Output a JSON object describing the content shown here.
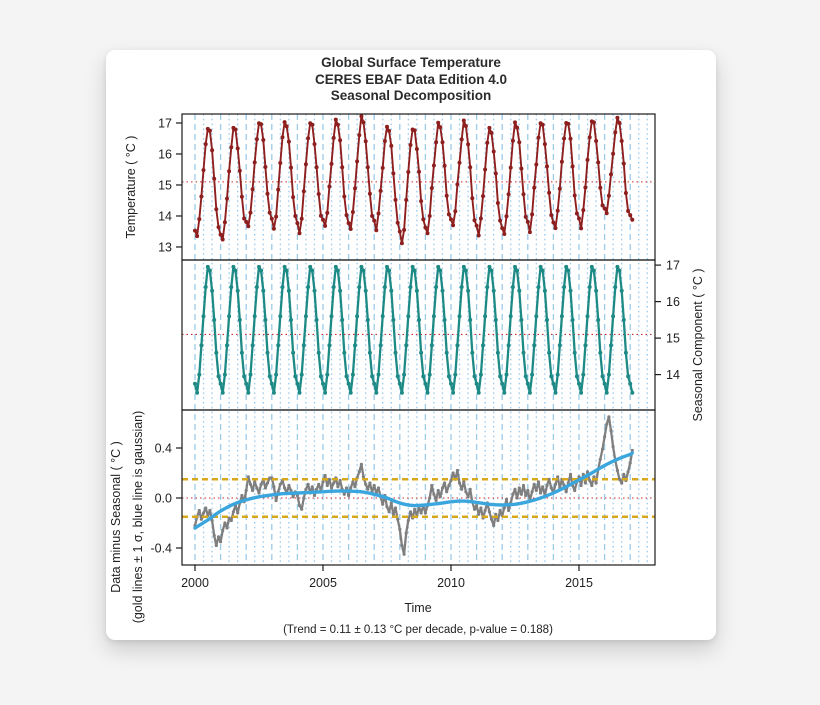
{
  "page": {
    "background": "#f4f4f5",
    "card_background": "#ffffff"
  },
  "title": {
    "line1": "Global Surface Temperature",
    "line2": "CERES EBAF Data Edition 4.0",
    "line3": "Seasonal Decomposition"
  },
  "chart_data": {
    "type": "line",
    "title": "Global Surface Temperature CERES EBAF Data Edition 4.0 Seasonal Decomposition",
    "caption": "(Trend = 0.11 ± 0.13 °C per decade, p-value = 0.188)",
    "x_axis": {
      "label": "Time",
      "tick_values": [
        2000,
        2005,
        2010,
        2015
      ],
      "tick_labels": [
        "2000",
        "2005",
        "2010",
        "2015"
      ],
      "range": [
        1999.49,
        2017.97
      ],
      "gridline_interval_years": 0.3333,
      "gridline_color": "#9ccbe9"
    },
    "x_start_year": 2000,
    "x_step_months": 1,
    "panels": [
      {
        "id": "temperature",
        "ylabel": "Temperature ( °C )",
        "axis_side": "left",
        "ytick_values": [
          13,
          14,
          15,
          16,
          17
        ],
        "ytick_labels": [
          "13",
          "14",
          "15",
          "16",
          "17"
        ],
        "ylim": [
          12.58,
          17.29
        ],
        "line_color": "#8e1f1f",
        "mean_line_value": 15.1,
        "mean_line_color": "#cc2a2a",
        "series_rule": "seasonal_cycle[month] + anomaly[i]"
      },
      {
        "id": "seasonal",
        "ylabel": "Seasonal Component ( °C )",
        "axis_side": "right",
        "ytick_values": [
          14,
          15,
          16,
          17
        ],
        "ytick_labels": [
          "14",
          "15",
          "16",
          "17"
        ],
        "ylim": [
          13.03,
          17.14
        ],
        "line_color": "#1e8a85",
        "mean_line_value": 15.1,
        "mean_line_color": "#cc2a2a",
        "series_rule": "seasonal_cycle repeated each year"
      },
      {
        "id": "residual",
        "ylabel_line1": "Data minus Seasonal ( °C )",
        "ylabel_line2": "(gold lines ± 1 σ, blue line is gaussian)",
        "axis_side": "left",
        "ytick_values": [
          -0.4,
          0.0,
          0.4
        ],
        "ytick_labels": [
          "-0.4",
          "0.0",
          "0.4"
        ],
        "ylim": [
          -0.536,
          0.704
        ],
        "line_color": "#7f7f7f",
        "zero_line_color": "#cc2a2a",
        "sigma_value": 0.15,
        "sigma_line_color": "#d8a81c",
        "smooth_color": "#3aa6dd",
        "series_rule": "anomaly[i]"
      }
    ],
    "seasonal_cycle": [
      13.75,
      13.5,
      14.0,
      14.8,
      15.6,
      16.4,
      16.95,
      16.85,
      16.3,
      15.5,
      14.6,
      13.95
    ],
    "anomaly": [
      -0.22,
      -0.15,
      -0.1,
      -0.17,
      -0.12,
      -0.08,
      -0.14,
      -0.1,
      -0.18,
      -0.3,
      -0.38,
      -0.31,
      -0.35,
      -0.26,
      -0.2,
      -0.24,
      -0.16,
      -0.18,
      -0.11,
      -0.06,
      -0.12,
      -0.04,
      0.02,
      -0.03,
      0.06,
      0.17,
      0.11,
      0.06,
      0.13,
      0.08,
      0.04,
      0.11,
      0.15,
      0.08,
      0.12,
      0.16,
      0.16,
      0.09,
      -0.02,
      0.05,
      0.11,
      0.14,
      0.08,
      0.04,
      0.1,
      0.06,
      0.01,
      0.05,
      0.02,
      -0.06,
      -0.09,
      0.0,
      0.07,
      0.11,
      0.04,
      0.09,
      0.02,
      0.07,
      0.11,
      0.06,
      0.13,
      0.18,
      0.1,
      0.15,
      0.08,
      0.12,
      0.16,
      0.09,
      0.14,
      0.07,
      0.03,
      0.08,
      0.02,
      0.08,
      0.13,
      0.09,
      0.16,
      0.21,
      0.27,
      0.17,
      0.11,
      0.07,
      0.12,
      0.05,
      0.1,
      0.04,
      0.08,
      0.01,
      -0.05,
      0.02,
      -0.07,
      -0.11,
      -0.04,
      -0.13,
      -0.08,
      -0.17,
      -0.25,
      -0.38,
      -0.45,
      -0.28,
      -0.18,
      -0.11,
      -0.16,
      -0.09,
      -0.14,
      -0.07,
      -0.12,
      -0.06,
      -0.12,
      -0.06,
      0.0,
      0.1,
      0.03,
      -0.02,
      0.06,
      0.01,
      0.08,
      0.12,
      0.05,
      0.1,
      0.14,
      0.2,
      0.15,
      0.22,
      0.12,
      0.07,
      0.13,
      0.05,
      0.01,
      0.07,
      -0.03,
      -0.09,
      -0.06,
      -0.13,
      -0.08,
      -0.16,
      -0.1,
      -0.04,
      -0.11,
      -0.17,
      -0.22,
      -0.13,
      -0.18,
      -0.1,
      -0.14,
      -0.08,
      -0.01,
      -0.1,
      -0.04,
      0.03,
      0.07,
      0.0,
      0.08,
      0.03,
      0.1,
      0.02,
      0.06,
      -0.02,
      0.05,
      0.11,
      0.06,
      0.13,
      0.04,
      0.09,
      0.02,
      0.1,
      0.15,
      0.08,
      0.04,
      0.11,
      0.17,
      0.08,
      0.15,
      0.1,
      0.05,
      0.12,
      0.19,
      0.1,
      0.06,
      0.13,
      0.17,
      0.1,
      0.19,
      0.12,
      0.21,
      0.14,
      0.1,
      0.17,
      0.12,
      0.23,
      0.31,
      0.39,
      0.49,
      0.59,
      0.65,
      0.54,
      0.41,
      0.3,
      0.22,
      0.15,
      0.12,
      0.19,
      0.14,
      0.21,
      0.28,
      0.38
    ],
    "smooth_x": [
      2000,
      2000.5,
      2001,
      2001.5,
      2002,
      2002.5,
      2003,
      2003.5,
      2004,
      2004.5,
      2005,
      2005.5,
      2006,
      2006.5,
      2007,
      2007.5,
      2008,
      2008.5,
      2009,
      2009.5,
      2010,
      2010.5,
      2011,
      2011.5,
      2012,
      2012.5,
      2013,
      2013.5,
      2014,
      2014.5,
      2015,
      2015.5,
      2016,
      2016.5,
      2017,
      2017.08
    ],
    "smooth_y": [
      -0.24,
      -0.175,
      -0.105,
      -0.05,
      -0.015,
      0.01,
      0.025,
      0.035,
      0.04,
      0.045,
      0.05,
      0.055,
      0.055,
      0.05,
      0.03,
      0.0,
      -0.04,
      -0.06,
      -0.055,
      -0.045,
      -0.03,
      -0.025,
      -0.035,
      -0.05,
      -0.055,
      -0.05,
      -0.03,
      0.0,
      0.04,
      0.09,
      0.145,
      0.2,
      0.26,
      0.31,
      0.35,
      0.36
    ]
  }
}
